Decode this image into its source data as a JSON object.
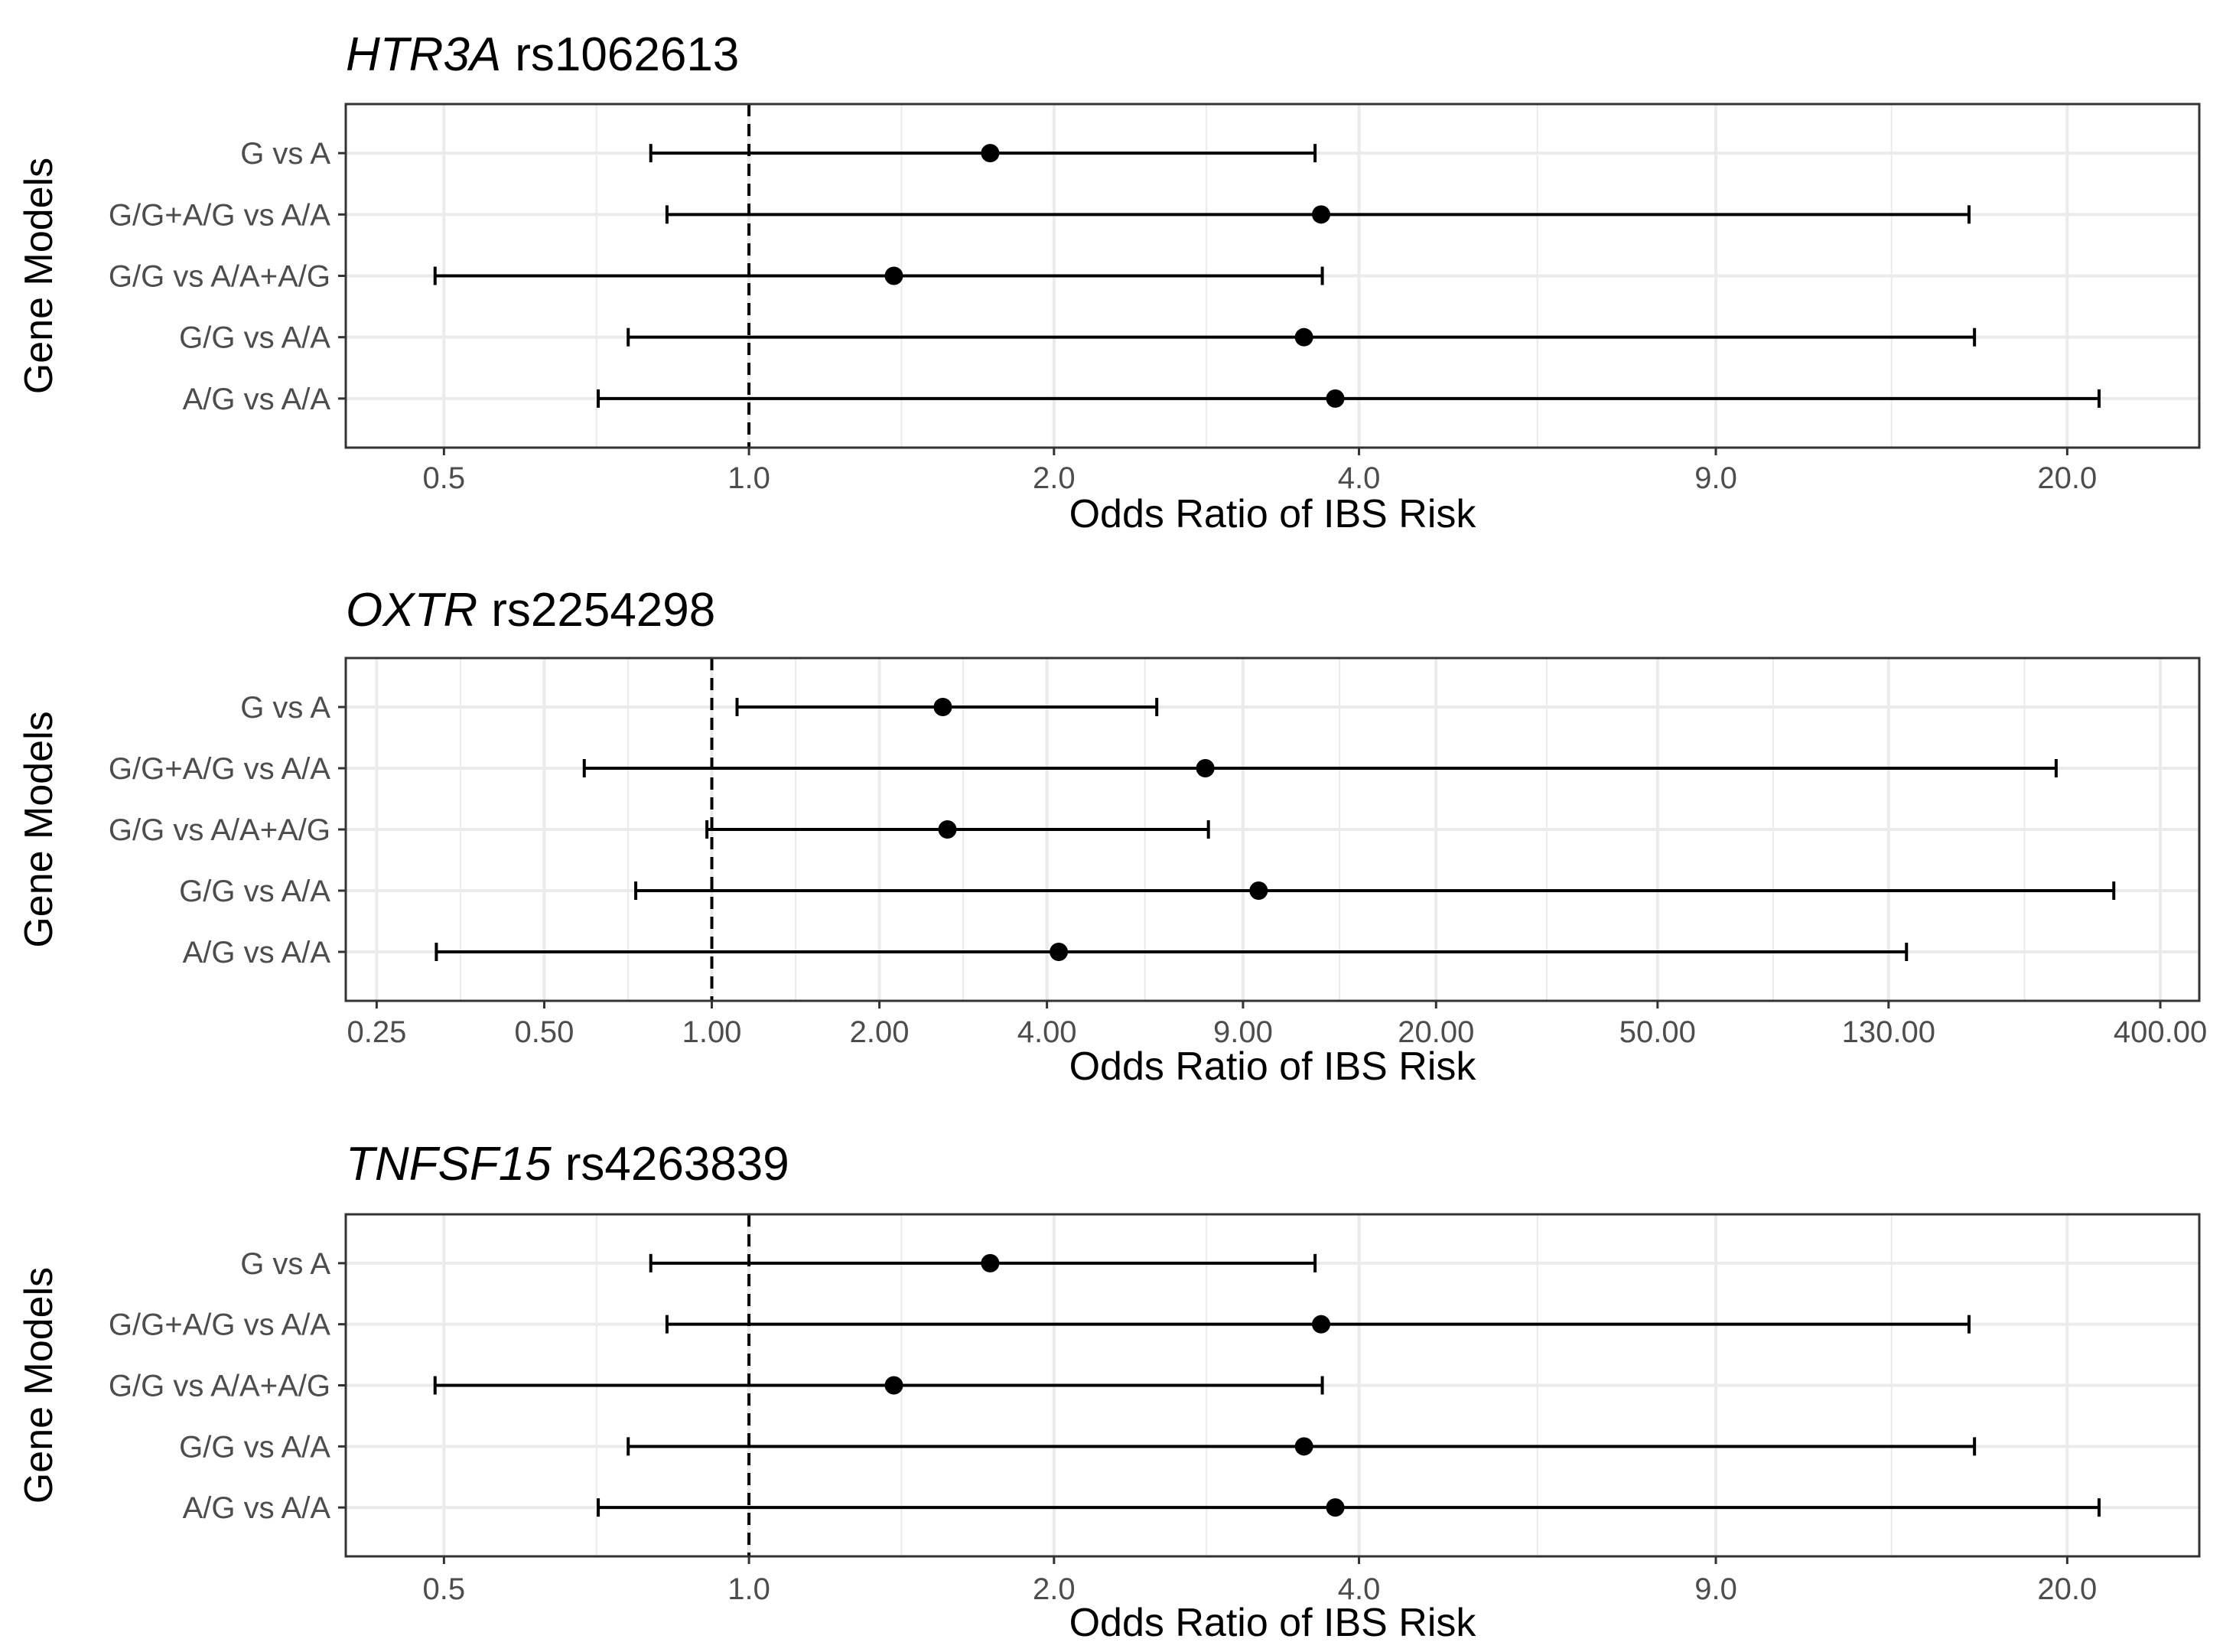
{
  "chart_data": [
    {
      "type": "forest",
      "title": {
        "gene": "HTR3A",
        "snp": "rs1062613"
      },
      "xlabel": "Odds Ratio of IBS Risk",
      "ylabel": "Gene Models",
      "x_scale": "log",
      "x_ticks": [
        0.5,
        1,
        2,
        4,
        9,
        20
      ],
      "x_tick_labels": [
        "0.5",
        "1.0",
        "2.0",
        "4.0",
        "9.0",
        "20.0"
      ],
      "xlim": [
        0.4,
        27
      ],
      "reference_line": 1,
      "grid": true,
      "rows": [
        {
          "label": "G vs A",
          "or": 1.73,
          "lo": 0.8,
          "hi": 3.62
        },
        {
          "label": "G/G+A/G vs A/A",
          "or": 3.67,
          "lo": 0.83,
          "hi": 16.0
        },
        {
          "label": "G/G vs A/A+A/G",
          "or": 1.39,
          "lo": 0.49,
          "hi": 3.68
        },
        {
          "label": "G/G vs A/A",
          "or": 3.53,
          "lo": 0.76,
          "hi": 16.2
        },
        {
          "label": "A/G vs A/A",
          "or": 3.79,
          "lo": 0.71,
          "hi": 21.5
        }
      ]
    },
    {
      "type": "forest",
      "title": {
        "gene": "OXTR",
        "snp": "rs2254298"
      },
      "xlabel": "Odds Ratio of IBS Risk",
      "ylabel": "Gene Models",
      "x_scale": "log",
      "x_ticks": [
        0.25,
        0.5,
        1,
        2,
        4,
        9,
        20,
        50,
        130,
        400
      ],
      "x_tick_labels": [
        "0.25",
        "0.50",
        "1.00",
        "2.00",
        "4.00",
        "9.00",
        "20.00",
        "50.00",
        "130.00",
        "400.00"
      ],
      "xlim": [
        0.22,
        470
      ],
      "reference_line": 1,
      "grid": true,
      "rows": [
        {
          "label": "G vs A",
          "or": 2.6,
          "lo": 1.11,
          "hi": 6.3
        },
        {
          "label": "G/G+A/G vs A/A",
          "or": 7.7,
          "lo": 0.59,
          "hi": 260
        },
        {
          "label": "G/G vs A/A+A/G",
          "or": 2.65,
          "lo": 0.98,
          "hi": 7.8
        },
        {
          "label": "G/G vs A/A",
          "or": 9.6,
          "lo": 0.73,
          "hi": 330
        },
        {
          "label": "A/G vs A/A",
          "or": 4.2,
          "lo": 0.32,
          "hi": 140
        }
      ]
    },
    {
      "type": "forest",
      "title": {
        "gene": "TNFSF15",
        "snp": "rs4263839"
      },
      "xlabel": "Odds Ratio of IBS Risk",
      "ylabel": "Gene Models",
      "x_scale": "log",
      "x_ticks": [
        0.5,
        1,
        2,
        4,
        9,
        20
      ],
      "x_tick_labels": [
        "0.5",
        "1.0",
        "2.0",
        "4.0",
        "9.0",
        "20.0"
      ],
      "xlim": [
        0.4,
        27
      ],
      "reference_line": 1,
      "grid": true,
      "rows": [
        {
          "label": "G vs A",
          "or": 1.73,
          "lo": 0.8,
          "hi": 3.62
        },
        {
          "label": "G/G+A/G vs A/A",
          "or": 3.67,
          "lo": 0.83,
          "hi": 16.0
        },
        {
          "label": "G/G vs A/A+A/G",
          "or": 1.39,
          "lo": 0.49,
          "hi": 3.68
        },
        {
          "label": "G/G vs A/A",
          "or": 3.53,
          "lo": 0.76,
          "hi": 16.2
        },
        {
          "label": "A/G vs A/A",
          "or": 3.79,
          "lo": 0.71,
          "hi": 21.5
        }
      ]
    }
  ],
  "colors": {
    "panel_border": "#333333",
    "grid": "#ebebeb",
    "marks": "#000000",
    "tick_text": "#4d4d4d"
  }
}
